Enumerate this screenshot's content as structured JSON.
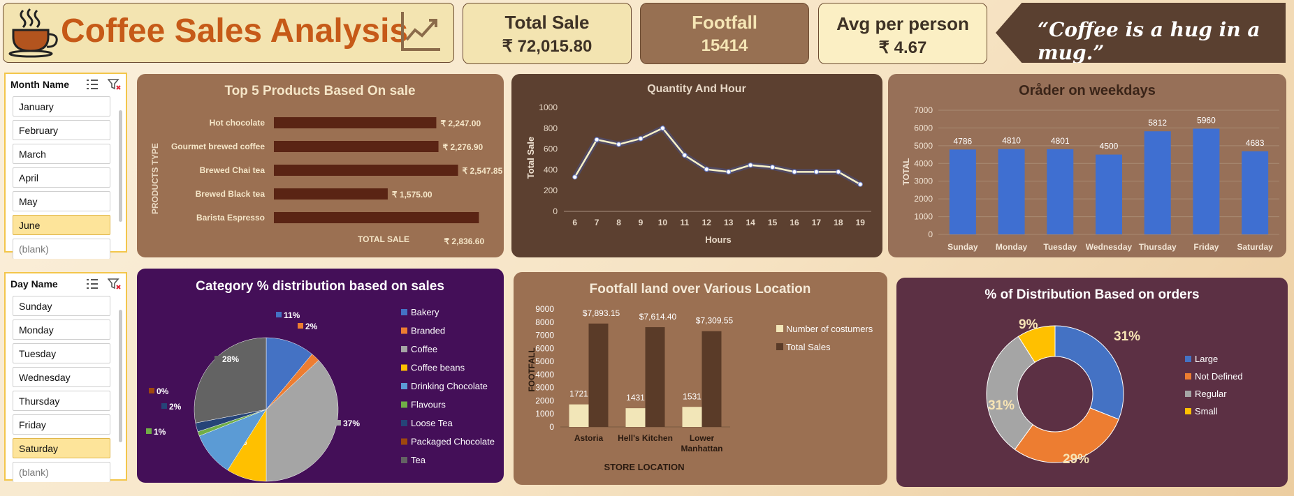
{
  "header": {
    "title": "Coffee Sales Analysis"
  },
  "kpis": {
    "total_sale": {
      "label": "Total Sale",
      "value": "₹ 72,015.80"
    },
    "footfall": {
      "label": "Footfall",
      "value": "15414"
    },
    "avg": {
      "label": "Avg per person",
      "value": "₹ 4.67"
    }
  },
  "quote": "“Coffee is a hug in a mug.”",
  "slicers": {
    "month": {
      "title": "Month Name",
      "items": [
        "January",
        "February",
        "March",
        "April",
        "May",
        "June",
        "(blank)"
      ],
      "selected": "June"
    },
    "day": {
      "title": "Day Name",
      "items": [
        "Sunday",
        "Monday",
        "Tuesday",
        "Wednesday",
        "Thursday",
        "Friday",
        "Saturday",
        "(blank)"
      ],
      "selected": "Saturday"
    }
  },
  "colors": {
    "bar_brown": "#5a2414",
    "bar_blue": "#3f6fd1",
    "line": "#f7f2c8",
    "panel_brown": "#9b7052",
    "panel_dark": "#5c4030",
    "panel_purple": "#440f58",
    "panel_plum": "#5c3044"
  },
  "chart_data": [
    {
      "id": "top-products",
      "type": "bar",
      "orientation": "horizontal",
      "title": "Top 5 Products Based On sale",
      "xlabel": "TOTAL SALE",
      "ylabel": "PRODUCTS TYPE",
      "categories": [
        "Hot chocolate",
        "Gourmet brewed coffee",
        "Brewed Chai tea",
        "Brewed Black tea",
        "Barista Espresso"
      ],
      "values": [
        2247.0,
        2276.9,
        2547.85,
        1575.0,
        2836.6
      ],
      "data_labels": [
        "₹ 2,247.00",
        "₹ 2,276.90",
        "₹ 2,547.85",
        "₹ 1,575.00",
        "₹ 2,836.60"
      ]
    },
    {
      "id": "quantity-hour",
      "type": "line",
      "title": "Quantity And Hour",
      "xlabel": "Hours",
      "ylabel": "Total Sale",
      "x": [
        6,
        7,
        8,
        9,
        10,
        11,
        12,
        13,
        14,
        15,
        16,
        17,
        18,
        19
      ],
      "values": [
        330,
        690,
        645,
        700,
        800,
        540,
        405,
        380,
        445,
        425,
        380,
        380,
        380,
        260
      ],
      "ylim": [
        0,
        1000
      ],
      "yticks": [
        0,
        200,
        400,
        600,
        800,
        1000
      ]
    },
    {
      "id": "weekdays",
      "type": "bar",
      "title": "Oråder on weekdays",
      "ylabel": "TOTAL",
      "categories": [
        "Sunday",
        "Monday",
        "Tuesday",
        "Wednesday",
        "Thursday",
        "Friday",
        "Saturday"
      ],
      "values": [
        4786,
        4810,
        4801,
        4500,
        5812,
        5960,
        4683
      ],
      "ylim": [
        0,
        7000
      ],
      "yticks": [
        0,
        1000,
        2000,
        3000,
        4000,
        5000,
        6000,
        7000
      ]
    },
    {
      "id": "category-pie",
      "type": "pie",
      "title": "Category % distribution based on sales",
      "categories": [
        "Bakery",
        "Branded",
        "Coffee",
        "Coffee beans",
        "Drinking Chocolate",
        "Flavours",
        "Loose Tea",
        "Packaged Chocolate",
        "Tea"
      ],
      "values": [
        11,
        2,
        37,
        9,
        10,
        1,
        2,
        0,
        28
      ],
      "labels": [
        "11%",
        "2%",
        "37%",
        "9%",
        "10%",
        "1%",
        "2%",
        "0%",
        "28%"
      ],
      "colors": [
        "#4472c4",
        "#ed7d31",
        "#a5a5a5",
        "#ffc000",
        "#5b9bd5",
        "#70ad47",
        "#264478",
        "#9e480e",
        "#636363"
      ]
    },
    {
      "id": "footfall-location",
      "type": "bar",
      "title": "Footfall land over Various Location",
      "xlabel": "STORE LOCATION",
      "ylabel": "FOOTFALL",
      "categories": [
        "Astoria",
        "Hell's Kitchen",
        "Lower Manhattan"
      ],
      "series": [
        {
          "name": "Number of costumers",
          "values": [
            1721,
            1431,
            1531
          ],
          "labels": [
            "1721",
            "1431",
            "1531"
          ],
          "color": "#f2e6b8"
        },
        {
          "name": "Total Sales",
          "values": [
            7893.15,
            7614.4,
            7309.55
          ],
          "labels": [
            "$7,893.15",
            "$7,614.40",
            "$7,309.55"
          ],
          "color": "#5a3b28"
        }
      ],
      "ylim": [
        0,
        9000
      ],
      "yticks": [
        0,
        1000,
        2000,
        3000,
        4000,
        5000,
        6000,
        7000,
        8000,
        9000
      ]
    },
    {
      "id": "size-donut",
      "type": "pie",
      "variant": "donut",
      "title": "% of Distribution Based on orders",
      "categories": [
        "Large",
        "Not Defined",
        "Regular",
        "Small"
      ],
      "values": [
        31,
        29,
        31,
        9
      ],
      "labels": [
        "31%",
        "29%",
        "31%",
        "9%"
      ],
      "colors": [
        "#4472c4",
        "#ed7d31",
        "#a5a5a5",
        "#ffc000"
      ]
    }
  ]
}
